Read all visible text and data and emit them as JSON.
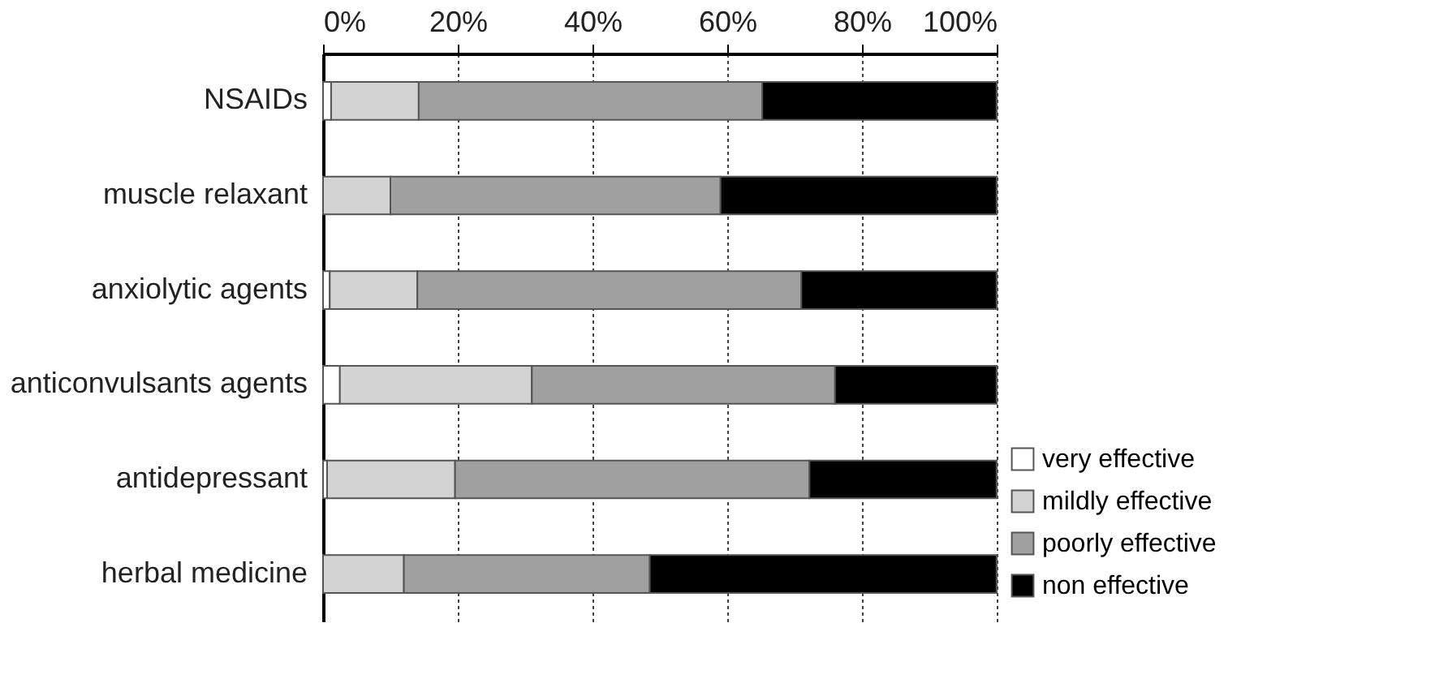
{
  "chart_data": {
    "type": "bar",
    "orientation": "horizontal",
    "stacked": true,
    "categories": [
      "NSAIDs",
      "muscle relaxant",
      "anxiolytic agents",
      "anticonvulsants agents",
      "antidepressant",
      "herbal medicine"
    ],
    "series": [
      {
        "name": "very effective",
        "color": "#ffffff",
        "values": [
          1.2,
          0,
          1,
          2.5,
          0.6,
          0
        ]
      },
      {
        "name": "mildly effective",
        "color": "#d3d3d3",
        "values": [
          13,
          10,
          13,
          28.5,
          19,
          12
        ]
      },
      {
        "name": "poorly effective",
        "color": "#a0a0a0",
        "values": [
          51,
          49,
          57,
          45,
          52.6,
          36.5
        ]
      },
      {
        "name": "non effective",
        "color": "#000000",
        "values": [
          34.8,
          41,
          29,
          24,
          27.8,
          51.5
        ]
      }
    ],
    "xlim": [
      0,
      100
    ],
    "xticks": [
      {
        "value": 0,
        "label": "0%"
      },
      {
        "value": 20,
        "label": "20%"
      },
      {
        "value": 40,
        "label": "40%"
      },
      {
        "value": 60,
        "label": "60%"
      },
      {
        "value": 80,
        "label": "80%"
      },
      {
        "value": 100,
        "label": "100%"
      }
    ],
    "grid": "x",
    "legend": "bottom right"
  }
}
